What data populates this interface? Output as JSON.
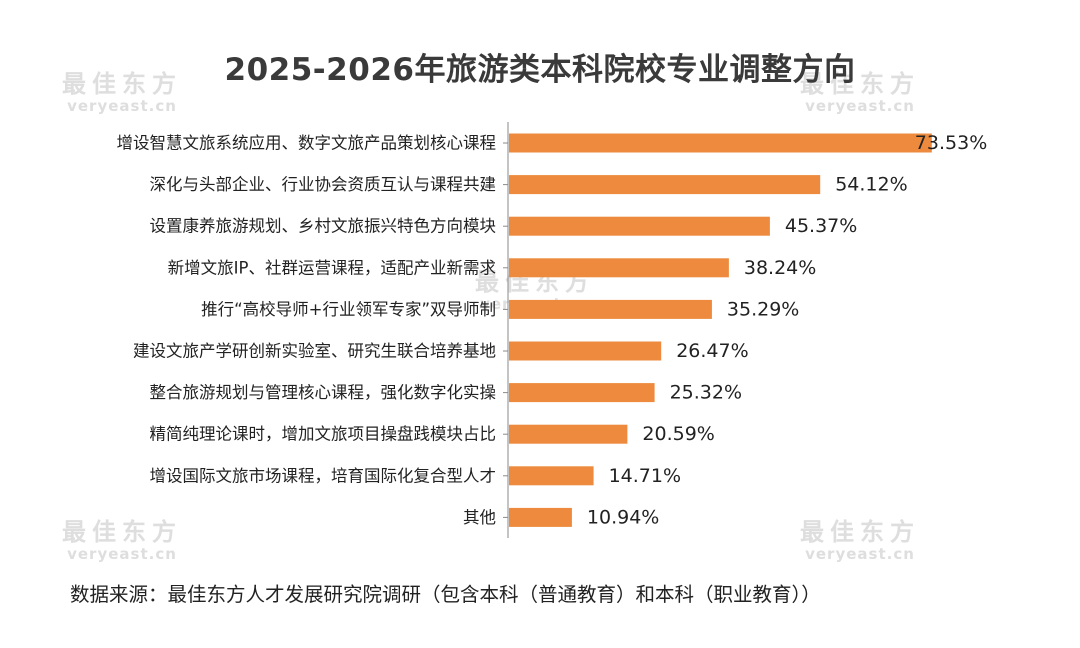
{
  "chart_data": {
    "type": "bar",
    "orientation": "horizontal",
    "title": "2025-2026年旅游类本科院校专业调整方向",
    "categories": [
      "增设智慧文旅系统应用、数字文旅产品策划核心课程",
      "深化与头部企业、行业协会资质互认与课程共建",
      "设置康养旅游规划、乡村文旅振兴特色方向模块",
      "新增文旅IP、社群运营课程，适配产业新需求",
      "推行“高校导师+行业领军专家”双导师制",
      "建设文旅产学研创新实验室、研究生联合培养基地",
      "整合旅游规划与管理核心课程，强化数字化实操",
      "精简纯理论课时，增加文旅项目操盘践模块占比",
      "增设国际文旅市场课程，培育国际化复合型人才",
      "其他"
    ],
    "values": [
      73.53,
      54.12,
      45.37,
      38.24,
      35.29,
      26.47,
      25.32,
      20.59,
      14.71,
      10.94
    ],
    "value_labels": [
      "73.53%",
      "54.12%",
      "45.37%",
      "38.24%",
      "35.29%",
      "26.47%",
      "25.32%",
      "20.59%",
      "14.71%",
      "10.94%"
    ],
    "unit": "%",
    "xlim": [
      0,
      100
    ],
    "bar_color": "#ed8a3d",
    "axis_color": "#8a8a8a",
    "grid": false,
    "legend": false
  },
  "watermark": {
    "text_cn": "最佳东方",
    "text_en": "veryeast.cn"
  },
  "source_note": "数据来源：最佳东方人才发展研究院调研（包含本科（普通教育）和本科（职业教育））"
}
